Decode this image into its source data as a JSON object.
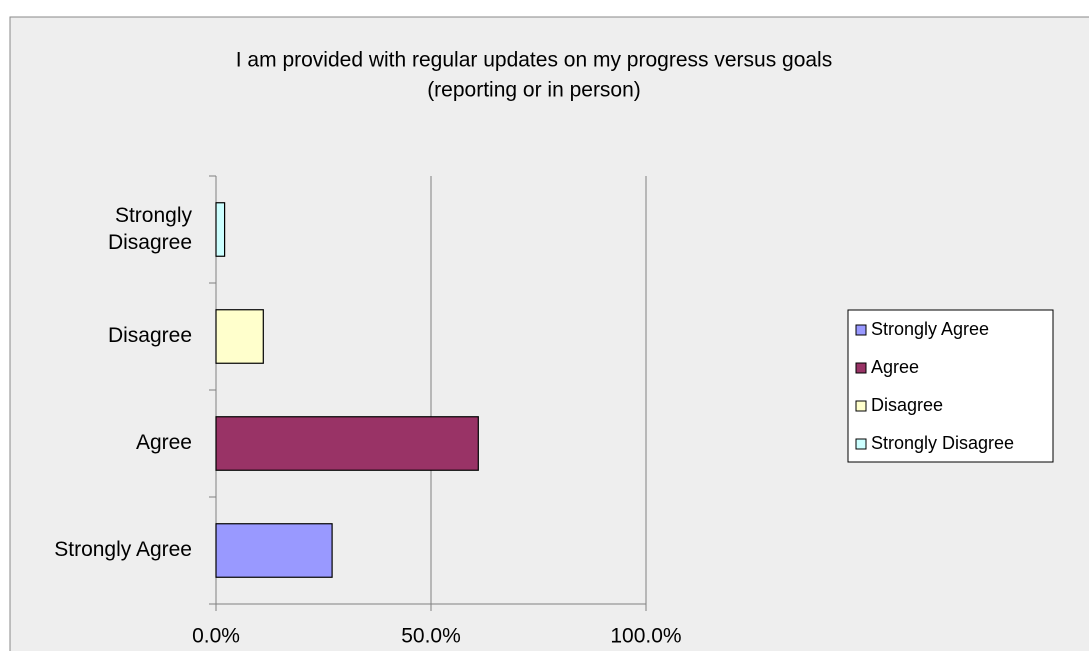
{
  "chart_data": {
    "type": "bar",
    "orientation": "horizontal",
    "title": [
      "I am provided with regular updates on my progress versus goals",
      "(reporting or in person)"
    ],
    "categories": [
      "Strongly Agree",
      "Agree",
      "Disagree",
      "Strongly Disagree"
    ],
    "values": [
      27,
      61,
      11,
      2
    ],
    "colors": [
      "#9999ff",
      "#993366",
      "#ffffcc",
      "#ccffff"
    ],
    "xlim": [
      0,
      100
    ],
    "xticks": [
      {
        "value": 0,
        "label": "0.0%"
      },
      {
        "value": 50,
        "label": "50.0%"
      },
      {
        "value": 100,
        "label": "100.0%"
      }
    ],
    "grid": true,
    "legend": "right"
  }
}
